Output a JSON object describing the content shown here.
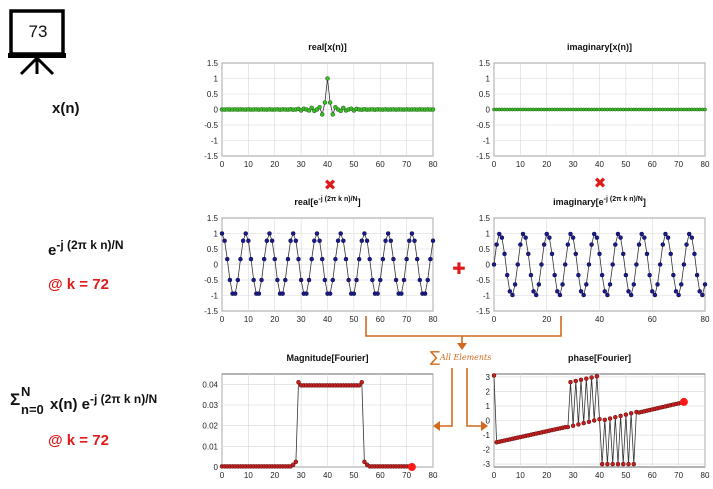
{
  "slide_number": "73",
  "left_labels": {
    "xn": "x(n)",
    "kernel_base": "e",
    "kernel_exp": "-j (2π k n)/N",
    "at_k_1": "@ k = 72",
    "sum_sigma": "Σ",
    "sum_upper": "N",
    "sum_lower": "n=0",
    "sum_body": "x(n) e",
    "sum_exp": "-j (2π k n)/N",
    "at_k_2": "@ k = 72"
  },
  "operators": {
    "multiply": "✖",
    "add": "✚",
    "sum_symbol": "∑",
    "sum_note": "All Elements"
  },
  "colors": {
    "accent_red": "#e01a1a",
    "arrow_orange": "#d2691e",
    "green_marker": "#3dbb2b",
    "blue_marker": "#1a1a8c",
    "red_marker": "#c42020"
  },
  "chart_data": [
    {
      "id": "real-xn",
      "type": "line",
      "title": "real[x(n)]",
      "title_sup": "",
      "title_suffix": "",
      "xlim": [
        0,
        80
      ],
      "ylim": [
        -1.5,
        1.5
      ],
      "xticks": [
        0,
        10,
        20,
        30,
        40,
        50,
        60,
        70,
        80
      ],
      "yticks": [
        -1.5,
        -1,
        -0.5,
        0,
        0.5,
        1,
        1.5
      ],
      "ytick_labels": [
        "-1.5",
        "-1",
        "-0.5",
        "0",
        "0.5",
        "1",
        "1.5"
      ],
      "grid": true,
      "marker_color": "#3dbb2b",
      "marker_stroke": "#1d5e14",
      "n": 81,
      "formula": "sinc",
      "center": 40
    },
    {
      "id": "imag-xn",
      "type": "line",
      "title": "imaginary[x(n)]",
      "title_sup": "",
      "title_suffix": "",
      "xlim": [
        0,
        80
      ],
      "ylim": [
        -1.5,
        1.5
      ],
      "xticks": [
        0,
        10,
        20,
        30,
        40,
        50,
        60,
        70,
        80
      ],
      "yticks": [
        -1.5,
        -1,
        -0.5,
        0,
        0.5,
        1,
        1.5
      ],
      "ytick_labels": [
        "-1.5",
        "-1",
        "-0.5",
        "0",
        "0.5",
        "1",
        "1.5"
      ],
      "grid": true,
      "marker_color": "#3dbb2b",
      "marker_stroke": "#1d5e14",
      "n": 81,
      "formula": "zero"
    },
    {
      "id": "real-kernel",
      "type": "line",
      "title": "real[e",
      "title_sup": "-j (2π k n)/N",
      "title_suffix": "]",
      "xlim": [
        0,
        80
      ],
      "ylim": [
        -1.5,
        1.5
      ],
      "xticks": [
        0,
        10,
        20,
        30,
        40,
        50,
        60,
        70,
        80
      ],
      "yticks": [
        -1.5,
        -1,
        -0.5,
        0,
        0.5,
        1,
        1.5
      ],
      "ytick_labels": [
        "-1.5",
        "-1",
        "-0.5",
        "0",
        "0.5",
        "1",
        "1.5"
      ],
      "grid": true,
      "marker_color": "#1a1a8c",
      "marker_stroke": "#0d0d40",
      "n": 81,
      "formula": "cos",
      "k": 72,
      "N": 81
    },
    {
      "id": "imag-kernel",
      "type": "line",
      "title": "imaginary[e",
      "title_sup": "-j (2π k n)/N",
      "title_suffix": "]",
      "xlim": [
        0,
        80
      ],
      "ylim": [
        -1.5,
        1.5
      ],
      "xticks": [
        0,
        20,
        40,
        60,
        80
      ],
      "yticks": [
        -1.5,
        -1,
        -0.5,
        0,
        0.5,
        1,
        1.5
      ],
      "ytick_labels": [
        "-1.5",
        "-1",
        "-0.5",
        "0",
        "0.5",
        "1",
        "1.5"
      ],
      "grid": true,
      "marker_color": "#1a1a8c",
      "marker_stroke": "#0d0d40",
      "n": 81,
      "formula": "negsin",
      "k": 72,
      "N": 81
    },
    {
      "id": "magnitude",
      "type": "line",
      "title": "Magnitude[Fourier]",
      "title_sup": "",
      "title_suffix": "",
      "xlim": [
        0,
        80
      ],
      "ylim": [
        0,
        0.045
      ],
      "xticks": [
        0,
        10,
        20,
        30,
        40,
        50,
        60,
        70,
        80
      ],
      "yticks": [
        0,
        0.01,
        0.02,
        0.03,
        0.04
      ],
      "ytick_labels": [
        "0",
        "0.01",
        "0.02",
        "0.03",
        "0.04"
      ],
      "grid": true,
      "marker_color": "#c42020",
      "marker_stroke": "#5a0c0c",
      "n": 73,
      "formula": "mag",
      "highlight": {
        "x": 72,
        "y": 0
      }
    },
    {
      "id": "phase",
      "type": "line",
      "title": "phase[Fourier]",
      "title_sup": "",
      "title_suffix": "",
      "xlim": [
        0,
        80
      ],
      "ylim": [
        -3.2,
        3.2
      ],
      "xticks": [
        0,
        10,
        20,
        30,
        40,
        50,
        60,
        70,
        80
      ],
      "yticks": [
        -3,
        -2,
        -1,
        0,
        1,
        2,
        3
      ],
      "ytick_labels": [
        "-3",
        "-2",
        "-1",
        "0",
        "1",
        "2",
        "3"
      ],
      "grid": true,
      "marker_color": "#c42020",
      "marker_stroke": "#5a0c0c",
      "n": 73,
      "formula": "phase",
      "highlight": {
        "x": 72,
        "y": 1.28
      }
    }
  ]
}
